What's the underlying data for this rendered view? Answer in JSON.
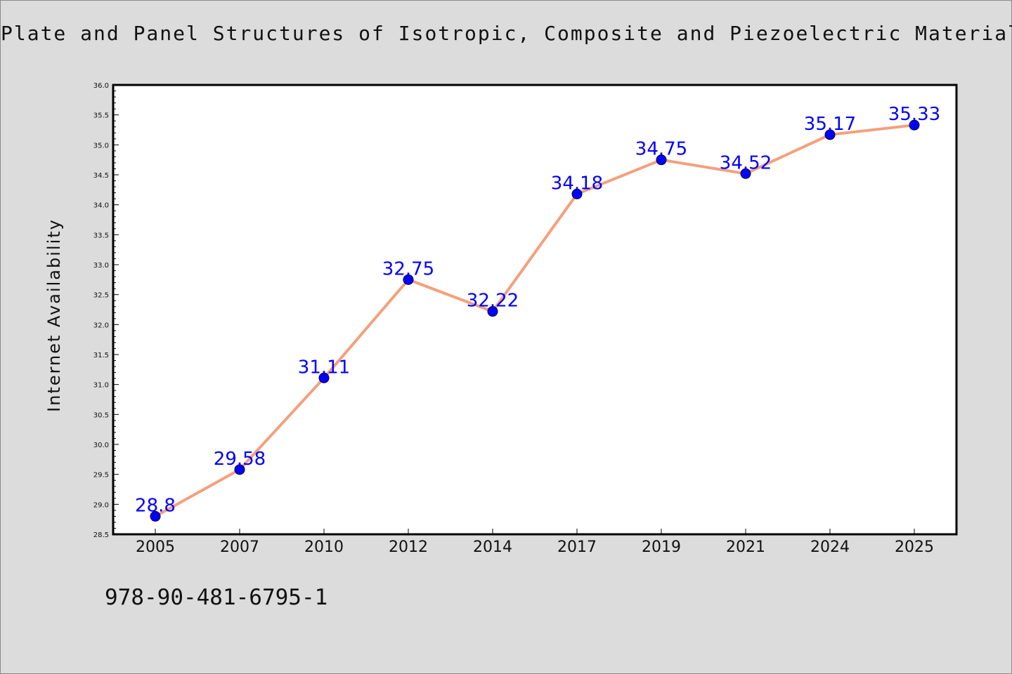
{
  "title": "Plate and Panel Structures of Isotropic, Composite and Piezoelectric Materials,",
  "isbn": "978-90-481-6795-1",
  "colors": {
    "background": "#dcdcdc",
    "plot_background": "#ffffff",
    "line": "#f4a07c",
    "marker": "#0000ff",
    "data_label": "#0000ff",
    "axis": "#000000"
  },
  "chart_data": {
    "type": "line",
    "title": "Plate and Panel Structures of Isotropic, Composite and Piezoelectric Materials,",
    "xlabel": "",
    "ylabel": "Internet Availability",
    "categories": [
      "2005",
      "2007",
      "2010",
      "2012",
      "2014",
      "2017",
      "2019",
      "2021",
      "2024",
      "2025"
    ],
    "values": [
      28.8,
      29.58,
      31.11,
      32.75,
      32.22,
      34.18,
      34.75,
      34.52,
      35.17,
      35.33
    ],
    "data_labels": [
      "28.8",
      "29.58",
      "31.11",
      "32.75",
      "32.22",
      "34.18",
      "34.75",
      "34.52",
      "35.17",
      "35.33"
    ],
    "ylim": [
      28.5,
      36.0
    ],
    "yticks": [
      "28.5",
      "29.0",
      "29.5",
      "30.0",
      "30.5",
      "31.0",
      "31.5",
      "32.0",
      "32.5",
      "33.0",
      "33.5",
      "34.0",
      "34.5",
      "35.0",
      "35.5",
      "36.0"
    ],
    "grid": false,
    "legend": "none",
    "marker": "circle"
  }
}
